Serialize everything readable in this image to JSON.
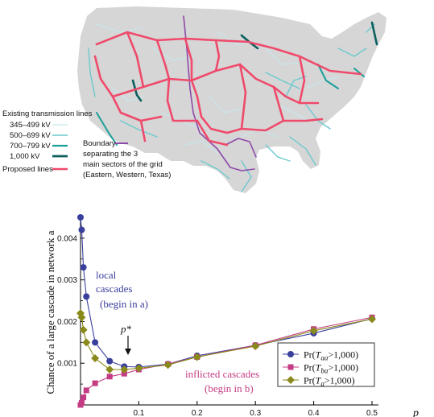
{
  "map": {
    "colors": {
      "land": "#d6d6d6",
      "line_345": "#c7e7ee",
      "line_500": "#6cc9cf",
      "line_700": "#1a9f98",
      "line_1000": "#0b5e5e",
      "proposed": "#ef4a6b",
      "boundary": "#8e4aa8"
    },
    "legend": {
      "existing_title": "Existing transmission lines",
      "items": [
        "345–499 kV",
        "500–699 kV",
        "700–799 kV",
        "1,000 kV"
      ],
      "proposed_label": "Proposed lines",
      "boundary_lines": [
        "Boundary",
        "separating the 3",
        "main sectors of the grid",
        "(Eastern, Western, Texas)"
      ]
    }
  },
  "chart_data": {
    "type": "line",
    "ylabel": "Chance of a large cascade in network a",
    "xlabel": "p",
    "xlim": [
      0,
      0.5
    ],
    "ylim": [
      0,
      0.0045
    ],
    "x_ticks": [
      "0.1",
      "0.2",
      "0.3",
      "0.4",
      "0.5"
    ],
    "y_ticks": [
      "0.001",
      "0.002",
      "0.003",
      "0.004"
    ],
    "x_tick_values": [
      0.1,
      0.2,
      0.3,
      0.4,
      0.5
    ],
    "y_tick_values": [
      0.001,
      0.002,
      0.003,
      0.004
    ],
    "series": [
      {
        "name": "Pr(Taa>1,000)",
        "legend_main": "Pr(",
        "legend_var": "T",
        "legend_sub": "aa",
        "legend_rest": ">1,000)",
        "color": "#3a3f9c",
        "marker": "circle",
        "x": [
          0.0,
          0.002,
          0.005,
          0.01,
          0.025,
          0.05,
          0.075,
          0.1,
          0.15,
          0.2,
          0.3,
          0.4,
          0.5
        ],
        "y": [
          0.0045,
          0.0042,
          0.0033,
          0.0026,
          0.0015,
          0.00105,
          0.00092,
          0.00091,
          0.00098,
          0.00118,
          0.00143,
          0.00172,
          0.00207
        ]
      },
      {
        "name": "Pr(Tba>1,000)",
        "legend_main": "Pr(",
        "legend_var": "T",
        "legend_sub": "ba",
        "legend_rest": ">1,000)",
        "color": "#c43c83",
        "marker": "square",
        "x": [
          0.0,
          0.002,
          0.005,
          0.01,
          0.025,
          0.05,
          0.075,
          0.1,
          0.15,
          0.2,
          0.3,
          0.4,
          0.5
        ],
        "y": [
          0.0,
          5e-05,
          0.00018,
          0.00035,
          0.00052,
          0.00068,
          0.00075,
          0.00085,
          0.00098,
          0.00115,
          0.00143,
          0.00182,
          0.0021
        ]
      },
      {
        "name": "Pr(Ta>1,000)",
        "legend_main": "Pr(",
        "legend_var": "T",
        "legend_sub": "a",
        "legend_rest": ">1,000)",
        "color": "#8a8a1c",
        "marker": "diamond",
        "x": [
          0.0,
          0.002,
          0.005,
          0.01,
          0.025,
          0.05,
          0.075,
          0.1,
          0.15,
          0.2,
          0.3,
          0.4,
          0.5
        ],
        "y": [
          0.0022,
          0.0021,
          0.0018,
          0.0015,
          0.00112,
          0.00085,
          0.00085,
          0.00088,
          0.00096,
          0.00115,
          0.00141,
          0.00178,
          0.00206
        ]
      }
    ],
    "annotations": {
      "local_1": "local",
      "local_2": "cascades",
      "local_3": "(begin in a)",
      "inflicted_1": "inflicted cascades",
      "inflicted_2": "(begin in b)",
      "pstar": "p*"
    }
  }
}
